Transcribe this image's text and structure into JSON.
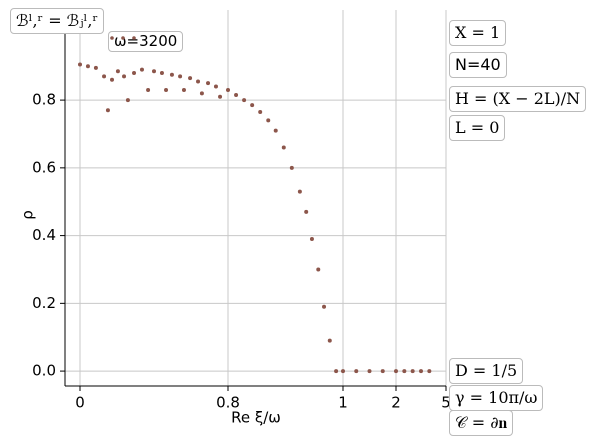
{
  "chart_data": {
    "type": "scatter",
    "xlabel": "Re ξ/ω",
    "ylabel": "ρ",
    "xscale": "piecewise-linear",
    "xlim": [
      -0.081,
      5
    ],
    "xticks": [
      0,
      0.8,
      1,
      2,
      5
    ],
    "ylim": [
      -0.044,
      1.066
    ],
    "yticks": [
      {
        "value": 0,
        "label": "0.0"
      },
      0.2,
      0.4,
      0.6,
      0.8
    ],
    "grid": true,
    "annotations": [
      "ℬˡ,ʳ = ℬⱼˡ,ʳ",
      "X = 1",
      "N=40",
      "H = (X − 2L)/N",
      "L = 0",
      "D = 1/5",
      "γ = 10π/ω",
      "𝒞 = ∂𝐧"
    ],
    "series": [
      {
        "name": "ω=3200",
        "color": "#8c564b",
        "x": [
          0.0,
          0.043,
          0.086,
          0.13,
          0.151,
          0.173,
          0.205,
          0.238,
          0.259,
          0.292,
          0.335,
          0.368,
          0.4,
          0.443,
          0.465,
          0.497,
          0.541,
          0.562,
          0.595,
          0.638,
          0.659,
          0.692,
          0.735,
          0.757,
          0.8,
          0.814,
          0.828,
          0.842,
          0.856,
          0.87,
          0.883,
          0.897,
          0.911,
          0.925,
          0.936,
          0.946,
          0.957,
          0.967,
          0.977,
          0.988,
          1.0,
          1.25,
          1.5,
          1.75,
          2.0,
          2.5,
          3.0,
          3.5,
          4.0
        ],
        "values": [
          0.905,
          0.9,
          0.895,
          0.87,
          0.77,
          0.86,
          0.885,
          0.87,
          0.8,
          0.88,
          0.89,
          0.83,
          0.885,
          0.88,
          0.83,
          0.875,
          0.87,
          0.83,
          0.865,
          0.855,
          0.82,
          0.85,
          0.84,
          0.81,
          0.83,
          0.815,
          0.8,
          0.785,
          0.765,
          0.74,
          0.71,
          0.66,
          0.6,
          0.53,
          0.47,
          0.39,
          0.3,
          0.19,
          0.09,
          0.0,
          0.0,
          0.0,
          0.0,
          0.0,
          0.0,
          0.0,
          0.0,
          0.0,
          0.0
        ]
      }
    ]
  }
}
